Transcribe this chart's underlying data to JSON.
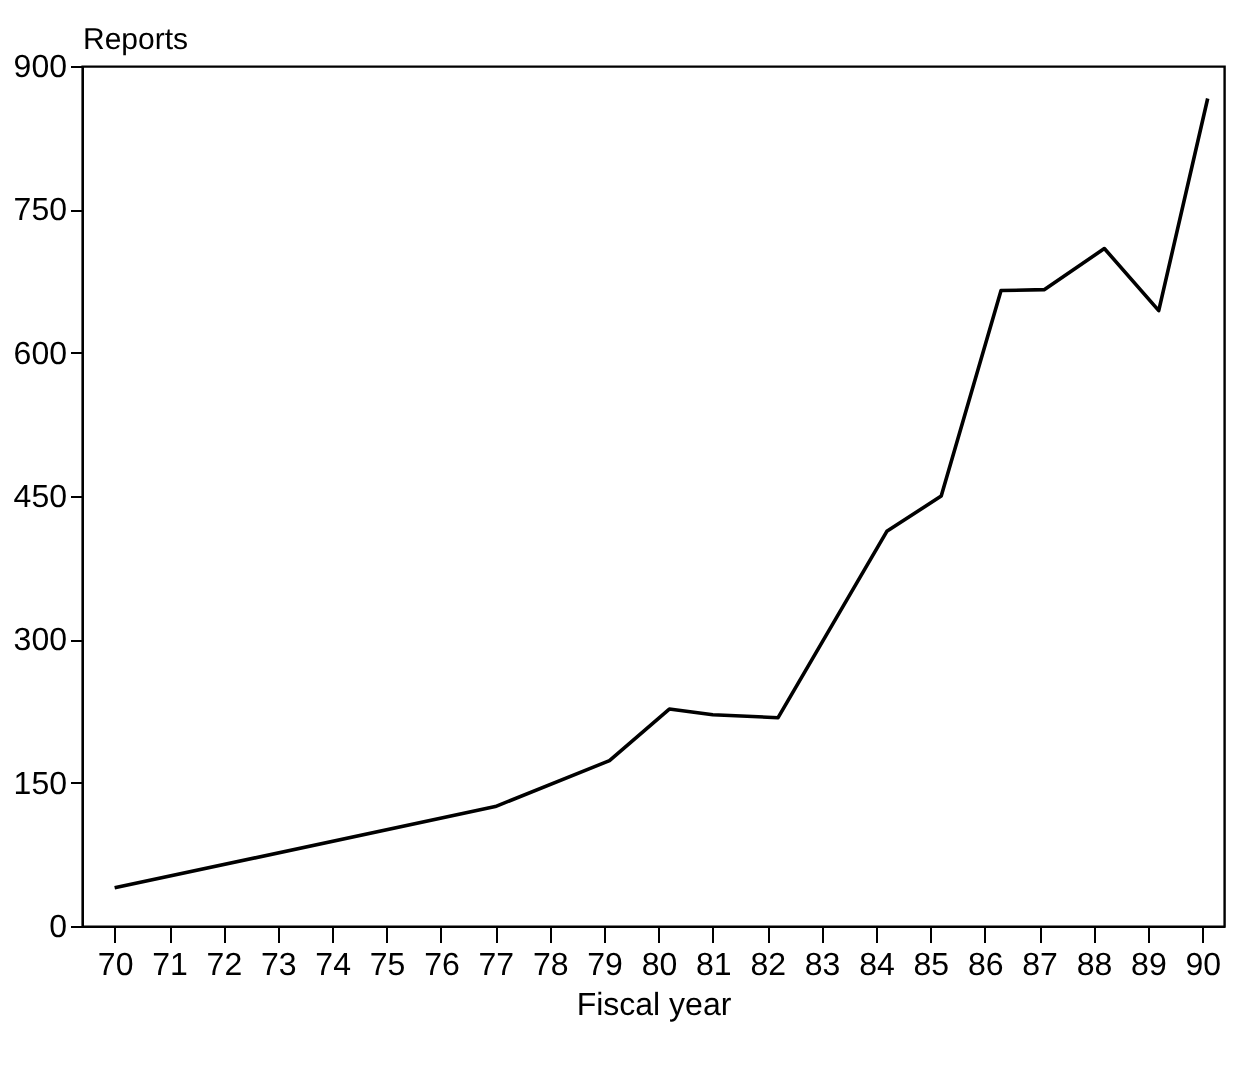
{
  "chart_data": {
    "type": "line",
    "xlabel": "Fiscal year",
    "ylabel": "Reports",
    "x": [
      70,
      77,
      79.1,
      80.2,
      81,
      82.2,
      84.2,
      85.2,
      86.3,
      87.1,
      88.2,
      89.2,
      90.1
    ],
    "series": [
      {
        "color": "#000000",
        "values": [
          40,
          125,
          173,
          227,
          221,
          218,
          413,
          450,
          665,
          666,
          709,
          644,
          866
        ]
      }
    ],
    "xlim": [
      69.4,
      90.4
    ],
    "xticks": [
      70,
      71,
      72,
      73,
      74,
      75,
      76,
      77,
      78,
      79,
      80,
      81,
      82,
      83,
      84,
      85,
      86,
      87,
      88,
      89,
      90
    ],
    "ylim": [
      0,
      900
    ],
    "yticks": [
      0,
      150,
      300,
      450,
      600,
      750,
      900
    ],
    "grid": false
  }
}
